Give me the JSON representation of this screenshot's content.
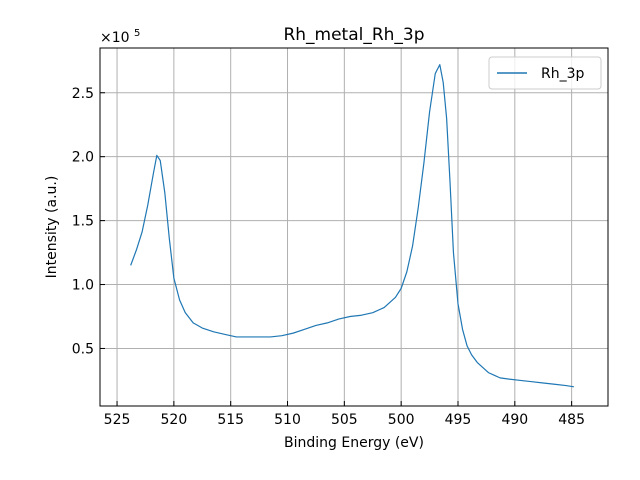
{
  "chart_data": {
    "type": "line",
    "title": "Rh_metal_Rh_3p",
    "xlabel": "Binding Energy (eV)",
    "ylabel": "Intensity (a.u.)",
    "y_multiplier_label": "×10",
    "y_multiplier_exp": "5",
    "xlim": [
      526.5,
      481.8
    ],
    "ylim": [
      0.05,
      2.85
    ],
    "x_reversed": true,
    "grid": true,
    "legend_position": "top-right",
    "x_ticks": [
      525,
      520,
      515,
      510,
      505,
      500,
      495,
      490,
      485
    ],
    "x_tick_labels": [
      "525",
      "520",
      "515",
      "510",
      "505",
      "500",
      "495",
      "490",
      "485"
    ],
    "y_ticks": [
      0.5,
      1.0,
      1.5,
      2.0,
      2.5
    ],
    "y_tick_labels": [
      "0.5",
      "1.0",
      "1.5",
      "2.0",
      "2.5"
    ],
    "colors": {
      "series": "#1f77b4",
      "grid": "#b0b0b0",
      "axes": "#000000"
    },
    "series": [
      {
        "name": "Rh_3p",
        "x": [
          523.8,
          523.3,
          522.8,
          522.3,
          521.8,
          521.5,
          521.2,
          520.8,
          520.4,
          520.0,
          519.5,
          519.0,
          518.3,
          517.5,
          516.5,
          515.5,
          514.5,
          513.5,
          512.5,
          511.5,
          510.5,
          509.5,
          508.5,
          507.5,
          506.5,
          505.5,
          504.5,
          503.5,
          502.5,
          501.5,
          500.5,
          500.0,
          499.5,
          499.0,
          498.5,
          498.0,
          497.5,
          497.0,
          496.6,
          496.3,
          496.0,
          495.7,
          495.4,
          495.0,
          494.6,
          494.2,
          493.8,
          493.3,
          492.8,
          492.3,
          491.8,
          491.3,
          490.5,
          489.5,
          488.5,
          487.5,
          486.5,
          485.5,
          484.8
        ],
        "y": [
          1.15,
          1.27,
          1.41,
          1.62,
          1.87,
          2.01,
          1.97,
          1.72,
          1.36,
          1.05,
          0.88,
          0.78,
          0.7,
          0.66,
          0.63,
          0.61,
          0.59,
          0.59,
          0.59,
          0.59,
          0.6,
          0.62,
          0.65,
          0.68,
          0.7,
          0.73,
          0.75,
          0.76,
          0.78,
          0.82,
          0.9,
          0.97,
          1.1,
          1.3,
          1.6,
          1.95,
          2.35,
          2.65,
          2.72,
          2.58,
          2.3,
          1.8,
          1.25,
          0.85,
          0.65,
          0.52,
          0.45,
          0.39,
          0.35,
          0.31,
          0.29,
          0.27,
          0.26,
          0.25,
          0.24,
          0.23,
          0.22,
          0.21,
          0.2
        ]
      }
    ]
  }
}
